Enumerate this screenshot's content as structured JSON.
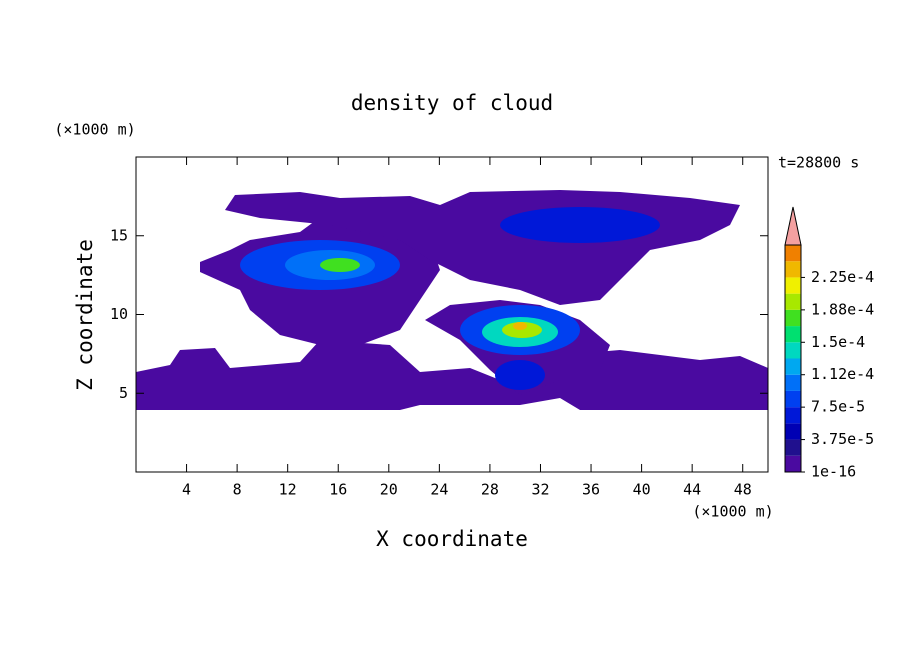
{
  "chart_data": {
    "type": "contour",
    "title": "density of cloud",
    "x_label": "X coordinate",
    "y_label": "Z coordinate",
    "x_unit": "(×1000 m)",
    "y_unit": "(×1000 m)",
    "annotation": "t=28800 s",
    "xlim": [
      0,
      50
    ],
    "xticks": [
      4,
      8,
      12,
      16,
      20,
      24,
      28,
      32,
      36,
      40,
      44,
      48
    ],
    "ylim": [
      0,
      20
    ],
    "yticks": [
      5,
      10,
      15
    ],
    "colorbar": {
      "clim": [
        1e-16,
        0.0002625
      ],
      "colors": [
        "#4a0aa0",
        "#20108e",
        "#0000b4",
        "#0018d8",
        "#0040f0",
        "#0070f8",
        "#00a8f0",
        "#00d8c0",
        "#00e070",
        "#40e020",
        "#a8e800",
        "#f0f000",
        "#f0b800",
        "#f08000"
      ],
      "extend_color": "#f4a0a0",
      "ticks": [
        1e-16,
        {
          "value": 3.75e-05,
          "label": "3.75e-5"
        },
        {
          "value": 7.5e-05,
          "label": "7.5e-5"
        },
        {
          "value": 0.0001125,
          "label": "1.12e-4"
        },
        {
          "value": 0.00015,
          "label": "1.5e-4"
        },
        {
          "value": 0.0001875,
          "label": "1.88e-4"
        },
        {
          "value": 0.000225,
          "label": "2.25e-4"
        }
      ]
    }
  }
}
